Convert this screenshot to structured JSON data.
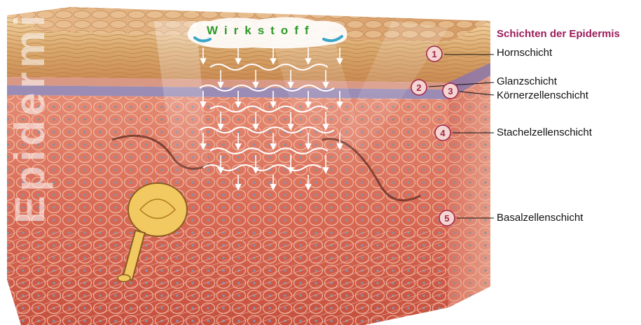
{
  "title": "Schichten der Epidermis",
  "side_label": "Epidermis",
  "agent_label": "Wirkstoff",
  "layers": [
    {
      "number": "1",
      "name": "Hornschicht"
    },
    {
      "number": "2",
      "name": "Glanzschicht"
    },
    {
      "number": "3",
      "name": "Körnerzellenschicht"
    },
    {
      "number": "4",
      "name": "Stachelzellenschicht"
    },
    {
      "number": "5",
      "name": "Basalzellenschicht"
    }
  ],
  "colors": {
    "accent": "#9b1b5a",
    "agent": "#2d9a2a",
    "horn_layer": "#d9b07a",
    "glanz_layer": "#8a78a8",
    "dermis": "#d8705a"
  }
}
